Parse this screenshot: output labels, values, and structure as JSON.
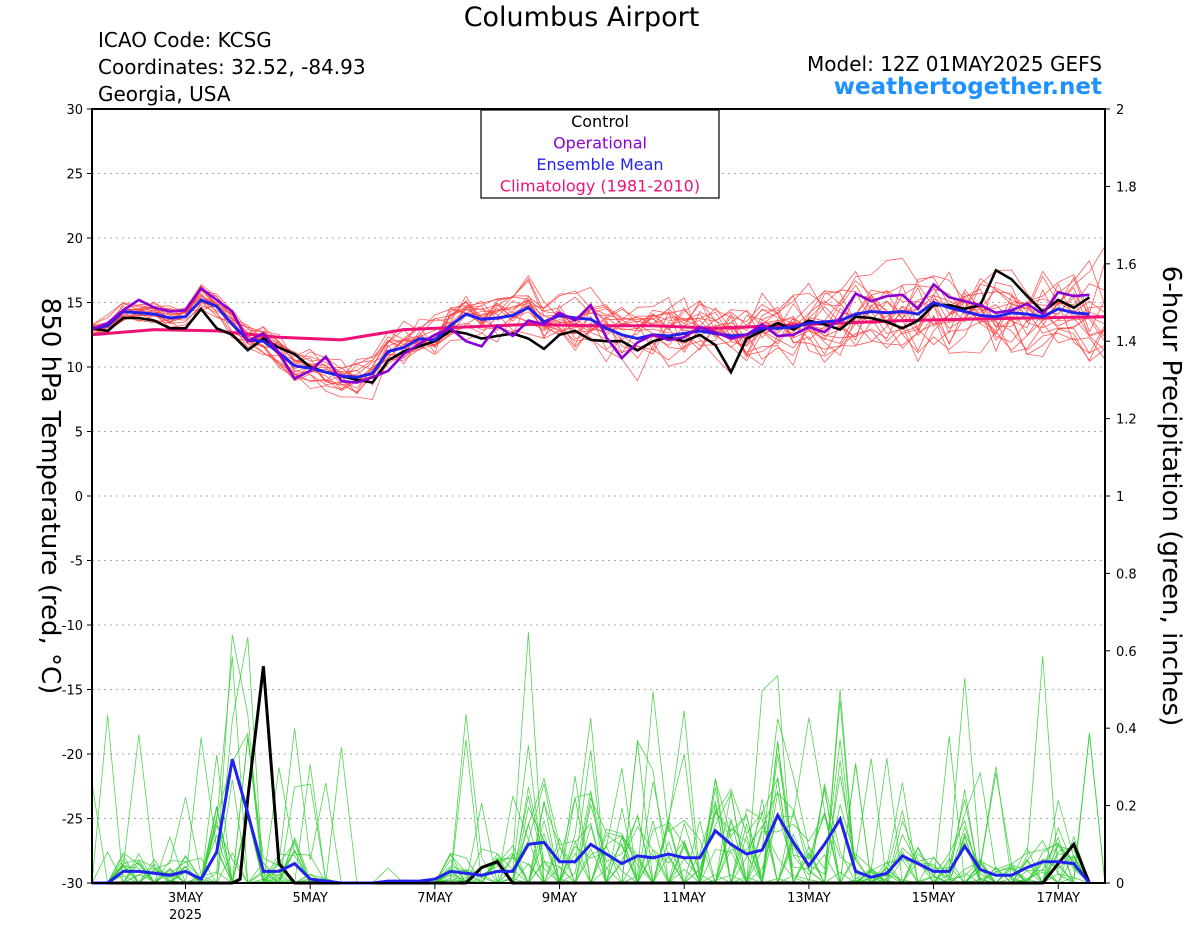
{
  "header": {
    "title": "Columbus Airport",
    "icao": "ICAO Code: KCSG",
    "coords": "Coordinates: 32.52, -84.93",
    "region": "Georgia, USA",
    "model": "Model: 12Z 01MAY2025 GEFS",
    "site": "weathertogether.net"
  },
  "colors": {
    "control": "#000000",
    "operational": "#8a00d4",
    "ensemble_mean": "#2222ee",
    "climatology": "#ee1177",
    "members_temp": "#ff4040",
    "members_precip": "#33cc33",
    "grid": "#aaaaaa"
  },
  "chart_data": {
    "type": "line",
    "title": "Columbus Airport",
    "ylabel": "850 hPa Temperature (red, °C)",
    "y2label": "6-hour Precipitation (green, inches)",
    "ylim": [
      -30,
      30
    ],
    "y2lim": [
      0,
      2
    ],
    "yticks": [
      30,
      25,
      20,
      15,
      10,
      5,
      0,
      -5,
      -10,
      -15,
      -20,
      -25,
      -30
    ],
    "y2ticks": [
      2,
      1.8,
      1.6,
      1.4,
      1.2,
      1,
      0.8,
      0.6,
      0.4,
      0.2,
      0
    ],
    "xlim_days": [
      1.5,
      17.75
    ],
    "xticks": [
      {
        "day": 3,
        "label": "3MAY",
        "sub": "2025"
      },
      {
        "day": 5,
        "label": "5MAY",
        "sub": ""
      },
      {
        "day": 7,
        "label": "7MAY",
        "sub": ""
      },
      {
        "day": 9,
        "label": "9MAY",
        "sub": ""
      },
      {
        "day": 11,
        "label": "11MAY",
        "sub": ""
      },
      {
        "day": 13,
        "label": "13MAY",
        "sub": ""
      },
      {
        "day": 15,
        "label": "15MAY",
        "sub": ""
      },
      {
        "day": 17,
        "label": "17MAY",
        "sub": ""
      }
    ],
    "legend": {
      "position": "top-center",
      "entries": [
        "Control",
        "Operational",
        "Ensemble Mean",
        "Climatology (1981-2010)"
      ]
    },
    "grid": true,
    "temperature": {
      "control": [
        [
          1.5,
          13
        ],
        [
          1.75,
          12.8
        ],
        [
          2,
          13.8
        ],
        [
          2.25,
          13.8
        ],
        [
          2.5,
          13.6
        ],
        [
          2.75,
          13
        ],
        [
          3,
          13
        ],
        [
          3.25,
          14.5
        ],
        [
          3.5,
          13
        ],
        [
          3.75,
          12.5
        ],
        [
          4,
          11.3
        ],
        [
          4.25,
          12.2
        ],
        [
          4.5,
          11.5
        ],
        [
          4.75,
          11
        ],
        [
          5,
          10
        ],
        [
          5.25,
          9.6
        ],
        [
          5.5,
          9.3
        ],
        [
          5.75,
          9
        ],
        [
          6,
          8.8
        ],
        [
          6.25,
          10.5
        ],
        [
          6.5,
          11.2
        ],
        [
          6.75,
          11.6
        ],
        [
          7,
          12
        ],
        [
          7.25,
          12.8
        ],
        [
          7.5,
          12.6
        ],
        [
          7.75,
          12.2
        ],
        [
          8,
          12.4
        ],
        [
          8.25,
          12.6
        ],
        [
          8.5,
          12.2
        ],
        [
          8.75,
          11.4
        ],
        [
          9,
          12.5
        ],
        [
          9.25,
          12.8
        ],
        [
          9.5,
          12.1
        ],
        [
          9.75,
          12
        ],
        [
          10,
          12
        ],
        [
          10.25,
          11.3
        ],
        [
          10.5,
          12
        ],
        [
          10.75,
          12.3
        ],
        [
          11,
          12
        ],
        [
          11.25,
          12.5
        ],
        [
          11.5,
          11.7
        ],
        [
          11.75,
          9.6
        ],
        [
          12,
          12.2
        ],
        [
          12.25,
          12.8
        ],
        [
          12.5,
          13.4
        ],
        [
          12.75,
          12.9
        ],
        [
          13,
          13.6
        ],
        [
          13.25,
          13.3
        ],
        [
          13.5,
          12.9
        ],
        [
          13.75,
          13.9
        ],
        [
          14,
          13.8
        ],
        [
          14.25,
          13.5
        ],
        [
          14.5,
          13
        ],
        [
          14.75,
          13.6
        ],
        [
          15,
          14.8
        ],
        [
          15.25,
          14.8
        ],
        [
          15.5,
          14.5
        ],
        [
          15.75,
          14.8
        ],
        [
          16,
          17.5
        ],
        [
          16.25,
          16.8
        ],
        [
          16.5,
          15.5
        ],
        [
          16.75,
          14.3
        ],
        [
          17,
          15.2
        ],
        [
          17.25,
          14.6
        ],
        [
          17.5,
          15.4
        ]
      ],
      "operational": [
        [
          1.5,
          12.9
        ],
        [
          1.75,
          13.4
        ],
        [
          2,
          14.4
        ],
        [
          2.25,
          15.2
        ],
        [
          2.5,
          14.6
        ],
        [
          2.75,
          14.3
        ],
        [
          3,
          14.4
        ],
        [
          3.25,
          16.1
        ],
        [
          3.5,
          15.2
        ],
        [
          3.75,
          14.3
        ],
        [
          4,
          12
        ],
        [
          4.25,
          12.6
        ],
        [
          4.5,
          11.1
        ],
        [
          4.75,
          9.1
        ],
        [
          5,
          9.7
        ],
        [
          5.25,
          10.8
        ],
        [
          5.5,
          8.9
        ],
        [
          5.75,
          8.8
        ],
        [
          6,
          9.2
        ],
        [
          6.25,
          9.7
        ],
        [
          6.5,
          11
        ],
        [
          6.75,
          11.8
        ],
        [
          7,
          12.5
        ],
        [
          7.25,
          13
        ],
        [
          7.5,
          12
        ],
        [
          7.75,
          11.6
        ],
        [
          8,
          13.2
        ],
        [
          8.25,
          12.4
        ],
        [
          8.5,
          13.6
        ],
        [
          8.75,
          13.3
        ],
        [
          9,
          14.2
        ],
        [
          9.25,
          13.6
        ],
        [
          9.5,
          14.8
        ],
        [
          9.75,
          12.3
        ],
        [
          10,
          10.7
        ],
        [
          10.25,
          11.9
        ],
        [
          10.5,
          12.5
        ],
        [
          10.75,
          12.1
        ],
        [
          11,
          12.3
        ],
        [
          11.25,
          13.1
        ],
        [
          11.5,
          12.7
        ],
        [
          11.75,
          12.2
        ],
        [
          12,
          12.5
        ],
        [
          12.25,
          13.3
        ],
        [
          12.5,
          12.4
        ],
        [
          12.75,
          12.5
        ],
        [
          13,
          13.1
        ],
        [
          13.25,
          12.7
        ],
        [
          13.5,
          13.8
        ],
        [
          13.75,
          15.7
        ],
        [
          14,
          15.1
        ],
        [
          14.25,
          15.5
        ],
        [
          14.5,
          15.6
        ],
        [
          14.75,
          14.5
        ],
        [
          15,
          16.4
        ],
        [
          15.25,
          15.4
        ],
        [
          15.5,
          15.1
        ],
        [
          15.75,
          14.8
        ],
        [
          16,
          14.2
        ],
        [
          16.25,
          14.4
        ],
        [
          16.5,
          14.9
        ],
        [
          16.75,
          14.1
        ],
        [
          17,
          15.8
        ],
        [
          17.25,
          15.5
        ],
        [
          17.5,
          15.6
        ]
      ],
      "ensemble_mean": [
        [
          1.5,
          13
        ],
        [
          1.75,
          13.2
        ],
        [
          2,
          14.3
        ],
        [
          2.25,
          14.2
        ],
        [
          2.5,
          14.1
        ],
        [
          2.75,
          13.8
        ],
        [
          3,
          13.9
        ],
        [
          3.25,
          15.2
        ],
        [
          3.5,
          14.7
        ],
        [
          3.75,
          13.3
        ],
        [
          4,
          12.1
        ],
        [
          4.25,
          12
        ],
        [
          4.5,
          11.1
        ],
        [
          4.75,
          10.1
        ],
        [
          5,
          9.9
        ],
        [
          5.25,
          9.6
        ],
        [
          5.5,
          9.3
        ],
        [
          5.75,
          9.2
        ],
        [
          6,
          9.5
        ],
        [
          6.25,
          11.2
        ],
        [
          6.5,
          11.5
        ],
        [
          6.75,
          12.2
        ],
        [
          7,
          12.1
        ],
        [
          7.25,
          13.2
        ],
        [
          7.5,
          14.1
        ],
        [
          7.75,
          13.7
        ],
        [
          8,
          13.8
        ],
        [
          8.25,
          14
        ],
        [
          8.5,
          14.6
        ],
        [
          8.75,
          13.5
        ],
        [
          9,
          14
        ],
        [
          9.25,
          13.8
        ],
        [
          9.5,
          13.7
        ],
        [
          9.75,
          13
        ],
        [
          10,
          12.5
        ],
        [
          10.25,
          12.2
        ],
        [
          10.5,
          12.5
        ],
        [
          10.75,
          12.4
        ],
        [
          11,
          12.6
        ],
        [
          11.25,
          12.8
        ],
        [
          11.5,
          12.6
        ],
        [
          11.75,
          12.4
        ],
        [
          12,
          12.5
        ],
        [
          12.25,
          13
        ],
        [
          12.5,
          13
        ],
        [
          12.75,
          13.1
        ],
        [
          13,
          13.4
        ],
        [
          13.25,
          13.5
        ],
        [
          13.5,
          13.6
        ],
        [
          13.75,
          14.1
        ],
        [
          14,
          14.3
        ],
        [
          14.25,
          14.2
        ],
        [
          14.5,
          14.3
        ],
        [
          14.75,
          14.1
        ],
        [
          15,
          15
        ],
        [
          15.25,
          14.6
        ],
        [
          15.5,
          14.3
        ],
        [
          15.75,
          14
        ],
        [
          16,
          13.9
        ],
        [
          16.25,
          14.2
        ],
        [
          16.5,
          14.1
        ],
        [
          16.75,
          13.9
        ],
        [
          17,
          14.5
        ],
        [
          17.25,
          14.2
        ],
        [
          17.5,
          14.1
        ]
      ],
      "climatology": [
        [
          1.5,
          12.5
        ],
        [
          2.5,
          12.9
        ],
        [
          3.5,
          12.8
        ],
        [
          4.5,
          12.3
        ],
        [
          5.5,
          12.1
        ],
        [
          6.5,
          12.9
        ],
        [
          7.5,
          13.1
        ],
        [
          8.5,
          13.3
        ],
        [
          9.5,
          13.2
        ],
        [
          10.5,
          13.2
        ],
        [
          11.5,
          13
        ],
        [
          12.5,
          13.2
        ],
        [
          13.5,
          13.4
        ],
        [
          14.5,
          13.6
        ],
        [
          15.5,
          13.7
        ],
        [
          16.5,
          13.8
        ],
        [
          17.75,
          13.9
        ]
      ]
    },
    "precipitation": {
      "control": [
        [
          1.5,
          0
        ],
        [
          2,
          0
        ],
        [
          2.5,
          0
        ],
        [
          3,
          0
        ],
        [
          3.5,
          0
        ],
        [
          3.75,
          0
        ],
        [
          3.875,
          0.01
        ],
        [
          4,
          0.22
        ],
        [
          4.25,
          0.56
        ],
        [
          4.5,
          0.05
        ],
        [
          4.75,
          0
        ],
        [
          5.5,
          0
        ],
        [
          6.5,
          0
        ],
        [
          7.5,
          0
        ],
        [
          7.75,
          0.04
        ],
        [
          8,
          0.055
        ],
        [
          8.25,
          0
        ],
        [
          8.5,
          0
        ],
        [
          9,
          0
        ],
        [
          10,
          0
        ],
        [
          11,
          0
        ],
        [
          12,
          0
        ],
        [
          13,
          0
        ],
        [
          14,
          0
        ],
        [
          15,
          0
        ],
        [
          16,
          0
        ],
        [
          16.75,
          0
        ],
        [
          17,
          0.05
        ],
        [
          17.25,
          0.1
        ],
        [
          17.5,
          0
        ]
      ],
      "ensemble_mean": [
        [
          1.5,
          0
        ],
        [
          1.75,
          0
        ],
        [
          2,
          0.03
        ],
        [
          2.25,
          0.03
        ],
        [
          2.5,
          0.025
        ],
        [
          2.75,
          0.02
        ],
        [
          3,
          0.03
        ],
        [
          3.25,
          0.01
        ],
        [
          3.5,
          0.08
        ],
        [
          3.75,
          0.32
        ],
        [
          4,
          0.18
        ],
        [
          4.25,
          0.03
        ],
        [
          4.5,
          0.03
        ],
        [
          4.75,
          0.05
        ],
        [
          5,
          0.01
        ],
        [
          5.25,
          0.005
        ],
        [
          5.5,
          0
        ],
        [
          6,
          0
        ],
        [
          6.25,
          0.005
        ],
        [
          6.5,
          0.005
        ],
        [
          6.75,
          0.005
        ],
        [
          7,
          0.01
        ],
        [
          7.25,
          0.03
        ],
        [
          7.5,
          0.025
        ],
        [
          7.75,
          0.02
        ],
        [
          8,
          0.03
        ],
        [
          8.25,
          0.03
        ],
        [
          8.5,
          0.1
        ],
        [
          8.75,
          0.105
        ],
        [
          9,
          0.055
        ],
        [
          9.25,
          0.055
        ],
        [
          9.5,
          0.1
        ],
        [
          9.75,
          0.075
        ],
        [
          10,
          0.05
        ],
        [
          10.25,
          0.07
        ],
        [
          10.5,
          0.065
        ],
        [
          10.75,
          0.075
        ],
        [
          11,
          0.065
        ],
        [
          11.25,
          0.065
        ],
        [
          11.5,
          0.135
        ],
        [
          11.75,
          0.1
        ],
        [
          12,
          0.075
        ],
        [
          12.25,
          0.085
        ],
        [
          12.5,
          0.175
        ],
        [
          12.75,
          0.105
        ],
        [
          13,
          0.045
        ],
        [
          13.25,
          0.1
        ],
        [
          13.5,
          0.165
        ],
        [
          13.75,
          0.03
        ],
        [
          14,
          0.015
        ],
        [
          14.25,
          0.025
        ],
        [
          14.5,
          0.07
        ],
        [
          14.75,
          0.05
        ],
        [
          15,
          0.03
        ],
        [
          15.25,
          0.03
        ],
        [
          15.5,
          0.095
        ],
        [
          15.75,
          0.035
        ],
        [
          16,
          0.02
        ],
        [
          16.25,
          0.02
        ],
        [
          16.5,
          0.04
        ],
        [
          16.75,
          0.055
        ],
        [
          17,
          0.055
        ],
        [
          17.25,
          0.05
        ],
        [
          17.5,
          0
        ]
      ]
    }
  }
}
